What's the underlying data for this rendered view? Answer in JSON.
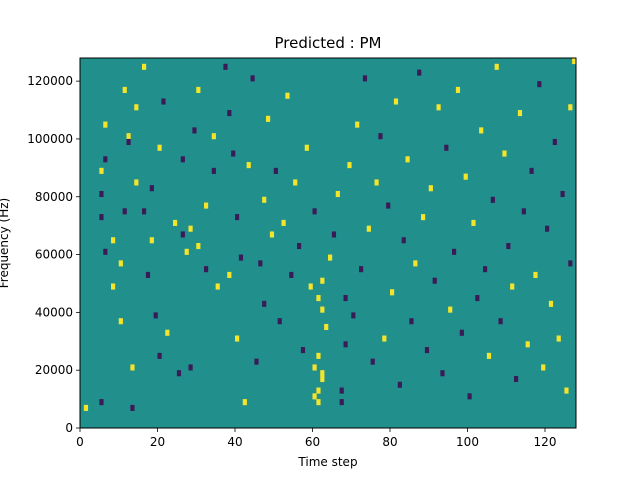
{
  "chart_data": {
    "type": "heatmap",
    "title": "Predicted : PM",
    "xlabel": "Time step",
    "ylabel": "Frequency (Hz)",
    "xlim": [
      0,
      128
    ],
    "ylim": [
      0,
      128000
    ],
    "x_ticks": [
      0,
      20,
      40,
      60,
      80,
      100,
      120
    ],
    "y_ticks": [
      0,
      20000,
      40000,
      60000,
      80000,
      100000,
      120000
    ],
    "grid": false,
    "n_time_steps": 128,
    "n_freq_bins": 64,
    "freq_bin_hz": 2000,
    "background_value": 0,
    "value_colors": {
      "-1": "#3b1a58",
      "0": "#21908d",
      "1": "#f5e52a"
    },
    "cells": [
      [
        1,
        3,
        1
      ],
      [
        5,
        4,
        -1
      ],
      [
        5,
        40,
        -1
      ],
      [
        5,
        36,
        -1
      ],
      [
        5,
        44,
        1
      ],
      [
        6,
        30,
        -1
      ],
      [
        6,
        52,
        1
      ],
      [
        6,
        46,
        -1
      ],
      [
        8,
        24,
        1
      ],
      [
        8,
        32,
        1
      ],
      [
        10,
        28,
        1
      ],
      [
        10,
        18,
        1
      ],
      [
        11,
        58,
        1
      ],
      [
        11,
        37,
        -1
      ],
      [
        12,
        50,
        1
      ],
      [
        12,
        49,
        -1
      ],
      [
        13,
        3,
        -1
      ],
      [
        13,
        10,
        1
      ],
      [
        14,
        55,
        1
      ],
      [
        14,
        42,
        1
      ],
      [
        16,
        62,
        1
      ],
      [
        16,
        37,
        -1
      ],
      [
        17,
        26,
        -1
      ],
      [
        18,
        41,
        -1
      ],
      [
        18,
        32,
        1
      ],
      [
        19,
        19,
        -1
      ],
      [
        20,
        48,
        1
      ],
      [
        20,
        12,
        -1
      ],
      [
        21,
        56,
        -1
      ],
      [
        22,
        16,
        1
      ],
      [
        24,
        35,
        1
      ],
      [
        25,
        9,
        -1
      ],
      [
        26,
        33,
        -1
      ],
      [
        26,
        46,
        -1
      ],
      [
        27,
        30,
        1
      ],
      [
        28,
        10,
        -1
      ],
      [
        28,
        34,
        1
      ],
      [
        29,
        51,
        -1
      ],
      [
        30,
        31,
        1
      ],
      [
        30,
        58,
        1
      ],
      [
        32,
        27,
        -1
      ],
      [
        32,
        38,
        1
      ],
      [
        34,
        44,
        -1
      ],
      [
        34,
        50,
        1
      ],
      [
        35,
        24,
        1
      ],
      [
        37,
        62,
        -1
      ],
      [
        38,
        26,
        1
      ],
      [
        38,
        54,
        -1
      ],
      [
        39,
        47,
        -1
      ],
      [
        40,
        36,
        -1
      ],
      [
        40,
        15,
        1
      ],
      [
        41,
        29,
        -1
      ],
      [
        42,
        4,
        1
      ],
      [
        43,
        45,
        1
      ],
      [
        44,
        60,
        -1
      ],
      [
        45,
        11,
        -1
      ],
      [
        46,
        28,
        -1
      ],
      [
        47,
        39,
        1
      ],
      [
        47,
        21,
        -1
      ],
      [
        48,
        53,
        1
      ],
      [
        49,
        33,
        1
      ],
      [
        50,
        44,
        -1
      ],
      [
        51,
        18,
        -1
      ],
      [
        52,
        35,
        1
      ],
      [
        53,
        57,
        1
      ],
      [
        54,
        26,
        -1
      ],
      [
        55,
        42,
        1
      ],
      [
        56,
        31,
        -1
      ],
      [
        57,
        13,
        -1
      ],
      [
        58,
        48,
        1
      ],
      [
        59,
        24,
        1
      ],
      [
        60,
        37,
        -1
      ],
      [
        60,
        5,
        1
      ],
      [
        61,
        4,
        1
      ],
      [
        61,
        6,
        1
      ],
      [
        62,
        8,
        1
      ],
      [
        62,
        9,
        1
      ],
      [
        60,
        10,
        1
      ],
      [
        61,
        12,
        1
      ],
      [
        62,
        20,
        1
      ],
      [
        61,
        22,
        1
      ],
      [
        62,
        25,
        1
      ],
      [
        63,
        17,
        1
      ],
      [
        64,
        29,
        1
      ],
      [
        65,
        33,
        -1
      ],
      [
        66,
        40,
        1
      ],
      [
        67,
        6,
        -1
      ],
      [
        67,
        4,
        -1
      ],
      [
        68,
        14,
        -1
      ],
      [
        68,
        22,
        -1
      ],
      [
        69,
        45,
        1
      ],
      [
        70,
        19,
        -1
      ],
      [
        71,
        52,
        1
      ],
      [
        72,
        27,
        -1
      ],
      [
        73,
        60,
        -1
      ],
      [
        74,
        34,
        1
      ],
      [
        75,
        11,
        -1
      ],
      [
        76,
        42,
        1
      ],
      [
        77,
        50,
        -1
      ],
      [
        78,
        15,
        1
      ],
      [
        79,
        38,
        -1
      ],
      [
        80,
        23,
        1
      ],
      [
        81,
        56,
        1
      ],
      [
        82,
        7,
        -1
      ],
      [
        83,
        32,
        -1
      ],
      [
        84,
        46,
        1
      ],
      [
        85,
        18,
        -1
      ],
      [
        86,
        28,
        1
      ],
      [
        87,
        61,
        -1
      ],
      [
        88,
        36,
        1
      ],
      [
        89,
        13,
        -1
      ],
      [
        90,
        41,
        1
      ],
      [
        91,
        25,
        -1
      ],
      [
        92,
        55,
        1
      ],
      [
        93,
        9,
        -1
      ],
      [
        94,
        48,
        -1
      ],
      [
        95,
        20,
        1
      ],
      [
        96,
        30,
        -1
      ],
      [
        97,
        58,
        1
      ],
      [
        98,
        16,
        -1
      ],
      [
        99,
        43,
        1
      ],
      [
        100,
        5,
        -1
      ],
      [
        101,
        35,
        1
      ],
      [
        102,
        22,
        -1
      ],
      [
        103,
        51,
        1
      ],
      [
        104,
        27,
        -1
      ],
      [
        105,
        12,
        1
      ],
      [
        106,
        39,
        -1
      ],
      [
        107,
        62,
        1
      ],
      [
        108,
        18,
        -1
      ],
      [
        109,
        47,
        1
      ],
      [
        110,
        31,
        -1
      ],
      [
        111,
        24,
        1
      ],
      [
        112,
        8,
        -1
      ],
      [
        113,
        54,
        1
      ],
      [
        114,
        37,
        -1
      ],
      [
        115,
        14,
        1
      ],
      [
        116,
        44,
        -1
      ],
      [
        117,
        26,
        1
      ],
      [
        118,
        59,
        -1
      ],
      [
        119,
        10,
        1
      ],
      [
        120,
        34,
        -1
      ],
      [
        121,
        21,
        1
      ],
      [
        122,
        49,
        -1
      ],
      [
        123,
        15,
        1
      ],
      [
        124,
        40,
        -1
      ],
      [
        125,
        6,
        1
      ],
      [
        126,
        28,
        -1
      ],
      [
        127,
        63,
        1
      ],
      [
        126,
        55,
        1
      ]
    ]
  }
}
